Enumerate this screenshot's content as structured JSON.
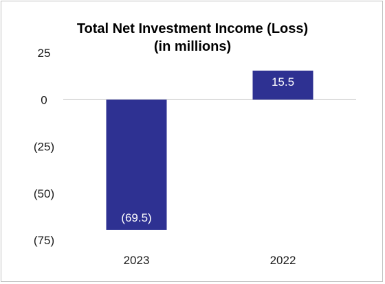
{
  "chart_data": {
    "type": "bar",
    "title": [
      "Total Net Investment Income (Loss)",
      "(in millions)"
    ],
    "categories": [
      "2023",
      "2022"
    ],
    "values": [
      -69.5,
      15.5
    ],
    "data_labels": [
      "(69.5)",
      "15.5"
    ],
    "ylim": [
      -75,
      25
    ],
    "yticks": [
      25,
      0,
      -25,
      -50,
      -75
    ],
    "ytick_labels": [
      "25",
      "0",
      "(25)",
      "(50)",
      "(75)"
    ],
    "grid": false,
    "legend": "none",
    "bar_color": "#2e3192",
    "zero_line_color": "#bfbfbf"
  }
}
